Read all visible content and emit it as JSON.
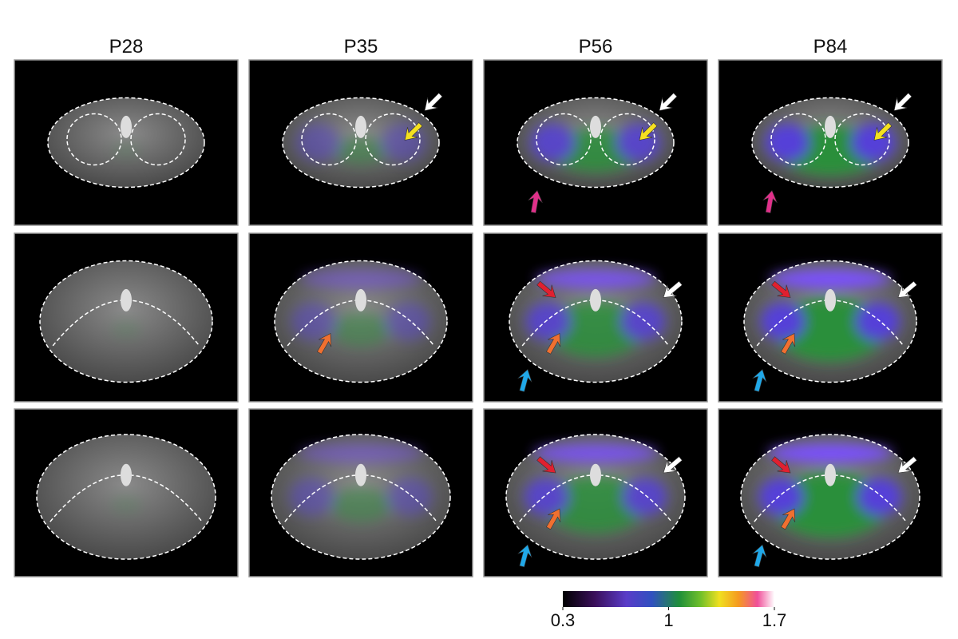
{
  "columns": [
    "P28",
    "P35",
    "P56",
    "P84"
  ],
  "colorbar": {
    "range": [
      0.3,
      1.7
    ],
    "ticks": [
      0.3,
      1,
      1.7
    ]
  }
}
